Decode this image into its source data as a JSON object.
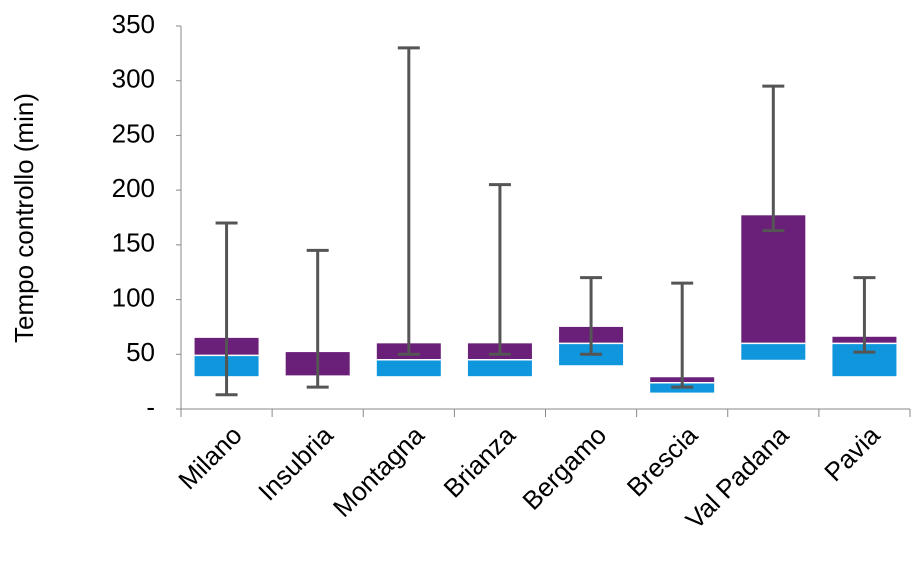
{
  "chart_data": {
    "type": "box",
    "y_label": "Tempo controllo (min)",
    "categories": [
      "Milano",
      "Insubria",
      "Montagna",
      "Brianza",
      "Bergamo",
      "Brescia",
      "Val Padana",
      "Pavia"
    ],
    "q1": [
      30,
      30,
      30,
      30,
      40,
      15,
      45,
      30
    ],
    "median": [
      49,
      30,
      45,
      45,
      60,
      24,
      60,
      60
    ],
    "q3": [
      65,
      52,
      60,
      60,
      75,
      29,
      177,
      66
    ],
    "min": [
      13,
      20,
      50,
      50,
      50,
      20,
      163,
      52
    ],
    "max": [
      170,
      145,
      330,
      205,
      120,
      115,
      295,
      120
    ],
    "lower_color": "#0f96dc",
    "upper_color": "#6a1f78",
    "whisker_color": "#555555",
    "ylim": [
      0,
      350
    ],
    "yticks": [
      {
        "value": 0,
        "label": "-"
      },
      50,
      100,
      150,
      200,
      250,
      300,
      350
    ]
  }
}
